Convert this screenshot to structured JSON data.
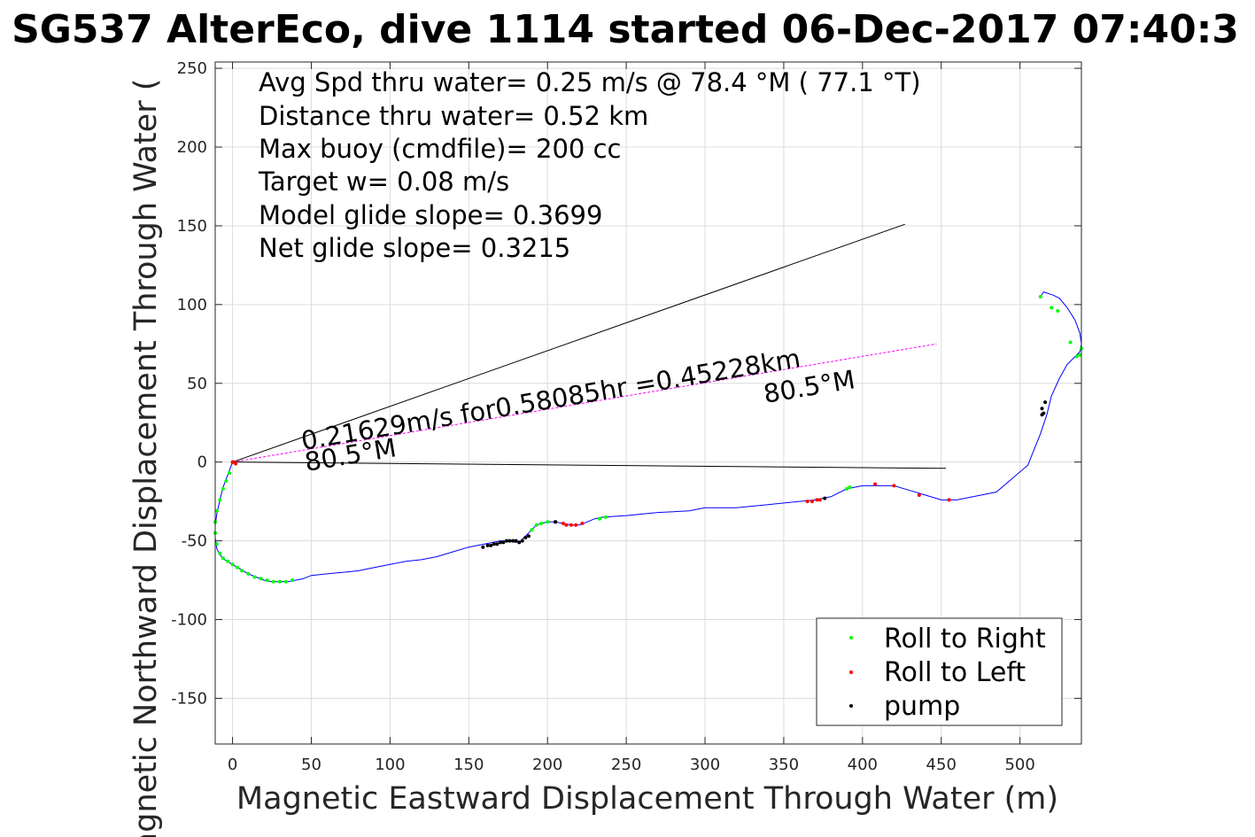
{
  "chart_data": {
    "type": "scatter",
    "title": "SG537 AlterEco, dive 1114 started 06-Dec-2017 07:40:3",
    "xlabel": "Magnetic Eastward Displacement Through Water (m)",
    "ylabel": "Magnetic Northward Displacement Through Water (",
    "xlim": [
      -11,
      539
    ],
    "ylim": [
      -179,
      254
    ],
    "xticks": [
      0,
      50,
      100,
      150,
      200,
      250,
      300,
      350,
      400,
      450,
      500
    ],
    "yticks": [
      -150,
      -100,
      -50,
      0,
      50,
      100,
      150,
      200,
      250
    ],
    "grid": true,
    "legend_position": "bottom-right",
    "colors": {
      "track": "#0000ff",
      "roll_right": "#00ff00",
      "roll_left": "#ff0000",
      "pump": "#000000",
      "avg_line": "#ff00ff",
      "envelope": "#000000"
    },
    "stats_lines": [
      "Avg Spd thru water=  0.25 m/s @  78.4 °M ( 77.1 °T)",
      "Distance thru water=  0.52 km",
      "Max buoy (cmdfile)= 200 cc",
      "Target w= 0.08 m/s",
      "Model glide slope= 0.3699",
      "Net glide slope= 0.3215"
    ],
    "annotations": {
      "speed_label": "0.21629m/s for0.58085hr =0.45228km",
      "heading_label_end": "80.5°M",
      "heading_label_start": "80.5°M"
    },
    "reference_lines": [
      {
        "name": "envelope-upper",
        "x": [
          0,
          427
        ],
        "y": [
          0,
          151
        ]
      },
      {
        "name": "envelope-lower",
        "x": [
          0,
          453
        ],
        "y": [
          0,
          -4
        ]
      },
      {
        "name": "average-heading",
        "x": [
          0,
          447
        ],
        "y": [
          0,
          75
        ]
      }
    ],
    "track": {
      "x": [
        0,
        -3,
        -6,
        -8,
        -10,
        -11,
        -11,
        -10,
        -8,
        -5,
        0,
        5,
        10,
        15,
        20,
        25,
        30,
        35,
        40,
        45,
        50,
        60,
        70,
        80,
        90,
        100,
        110,
        120,
        130,
        140,
        150,
        160,
        170,
        175,
        180,
        183,
        185,
        188,
        190,
        193,
        196,
        200,
        205,
        210,
        215,
        220,
        225,
        230,
        235,
        250,
        270,
        290,
        300,
        320,
        340,
        360,
        370,
        380,
        390,
        400,
        410,
        420,
        430,
        440,
        450,
        460,
        485,
        505,
        513,
        517,
        520,
        525,
        530,
        535,
        538,
        539,
        538,
        535,
        530,
        525,
        521,
        515,
        513
      ],
      "y": [
        0,
        -8,
        -16,
        -24,
        -33,
        -40,
        -48,
        -55,
        -59,
        -62,
        -65,
        -68,
        -71,
        -73,
        -75,
        -76,
        -76,
        -76,
        -75,
        -74,
        -72,
        -71,
        -70,
        -69,
        -67,
        -65,
        -63,
        -62,
        -60,
        -57,
        -54,
        -52,
        -50,
        -50,
        -51,
        -50,
        -48,
        -45,
        -43,
        -40,
        -39,
        -38,
        -38,
        -39,
        -40,
        -40,
        -38,
        -36,
        -35,
        -34,
        -32,
        -31,
        -29,
        -29,
        -27,
        -25,
        -24,
        -22,
        -17,
        -15,
        -15,
        -15,
        -18,
        -21,
        -24,
        -24,
        -19,
        -2,
        18,
        30,
        42,
        53,
        62,
        67,
        70,
        75,
        82,
        90,
        98,
        104,
        106,
        108,
        105
      ],
      "roll_right": [
        [
          0,
          0
        ],
        [
          -2,
          -7
        ],
        [
          -4,
          -12
        ],
        [
          -6,
          -17
        ],
        [
          -8,
          -24
        ],
        [
          -10,
          -31
        ],
        [
          -11,
          -38
        ],
        [
          -11,
          -45
        ],
        [
          -10,
          -52
        ],
        [
          -8,
          -58
        ],
        [
          -6,
          -61
        ],
        [
          -3,
          -63
        ],
        [
          0,
          -65
        ],
        [
          3,
          -67
        ],
        [
          6,
          -69
        ],
        [
          10,
          -71
        ],
        [
          14,
          -73
        ],
        [
          18,
          -74
        ],
        [
          22,
          -75
        ],
        [
          26,
          -76
        ],
        [
          30,
          -76
        ],
        [
          34,
          -76
        ],
        [
          38,
          -75
        ],
        [
          190,
          -43
        ],
        [
          193,
          -40
        ],
        [
          196,
          -39
        ],
        [
          200,
          -38
        ],
        [
          205,
          -38
        ],
        [
          233,
          -36
        ],
        [
          237,
          -35
        ],
        [
          390,
          -17
        ],
        [
          392,
          -16
        ],
        [
          513,
          105
        ],
        [
          520,
          98
        ],
        [
          524,
          96
        ],
        [
          532,
          76
        ],
        [
          536,
          67
        ],
        [
          538,
          68
        ],
        [
          539,
          72
        ]
      ],
      "roll_left": [
        [
          0,
          0
        ],
        [
          1,
          0
        ],
        [
          2,
          -1
        ],
        [
          205,
          -38
        ],
        [
          210,
          -39
        ],
        [
          212,
          -40
        ],
        [
          215,
          -40
        ],
        [
          218,
          -40
        ],
        [
          222,
          -39
        ],
        [
          365,
          -25
        ],
        [
          368,
          -25
        ],
        [
          371,
          -24
        ],
        [
          373,
          -24
        ],
        [
          408,
          -14
        ],
        [
          420,
          -15
        ],
        [
          436,
          -21
        ],
        [
          455,
          -24
        ]
      ],
      "pump": [
        [
          159,
          -54
        ],
        [
          162,
          -53
        ],
        [
          164,
          -53
        ],
        [
          166,
          -52
        ],
        [
          168,
          -52
        ],
        [
          170,
          -51
        ],
        [
          172,
          -51
        ],
        [
          174,
          -50
        ],
        [
          176,
          -50
        ],
        [
          178,
          -50
        ],
        [
          180,
          -50
        ],
        [
          182,
          -51
        ],
        [
          184,
          -50
        ],
        [
          186,
          -48
        ],
        [
          188,
          -47
        ],
        [
          205,
          -38
        ],
        [
          376,
          -23
        ],
        [
          514,
          34
        ],
        [
          516,
          38
        ],
        [
          514,
          30
        ],
        [
          515,
          31
        ]
      ]
    },
    "legend": [
      {
        "label": "Roll to Right",
        "color": "#00ff00"
      },
      {
        "label": "Roll to Left",
        "color": "#ff0000"
      },
      {
        "label": "pump",
        "color": "#000000"
      }
    ]
  }
}
